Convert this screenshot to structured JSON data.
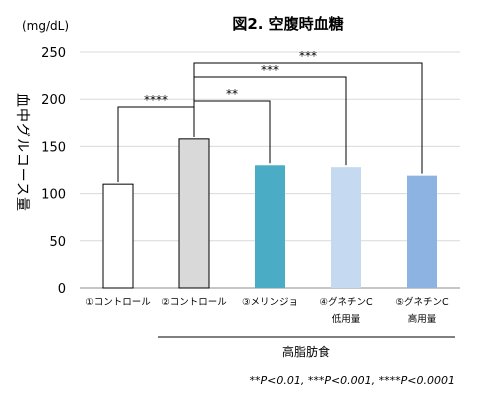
{
  "chart_data": {
    "type": "bar",
    "title": "図2. 空腹時血糖",
    "unit_label": "(mg/dL)",
    "ylabel": "血中グルコース量",
    "ylim": [
      0,
      250
    ],
    "yticks": [
      0,
      50,
      100,
      150,
      200,
      250
    ],
    "categories": [
      {
        "line1": "①コントロール",
        "line2": ""
      },
      {
        "line1": "②コントロール",
        "line2": ""
      },
      {
        "line1": "③メリンジョ",
        "line2": ""
      },
      {
        "line1": "④グネチンC",
        "line2": "低用量"
      },
      {
        "line1": "⑤グネチンC",
        "line2": "高用量"
      }
    ],
    "values": [
      110,
      158,
      130,
      128,
      119
    ],
    "colors": [
      "#ffffff",
      "#d9d9d9",
      "#4bacc6",
      "#c5d9f1",
      "#8db3e2"
    ],
    "group_label": "高脂肪食",
    "significance": [
      {
        "from": 0,
        "to": 1,
        "label": "****"
      },
      {
        "from": 1,
        "to": 2,
        "label": "**"
      },
      {
        "from": 1,
        "to": 3,
        "label": "***"
      },
      {
        "from": 1,
        "to": 4,
        "label": "***"
      }
    ],
    "footnote": "**P<0.01, ***P<0.001, ****P<0.0001"
  }
}
